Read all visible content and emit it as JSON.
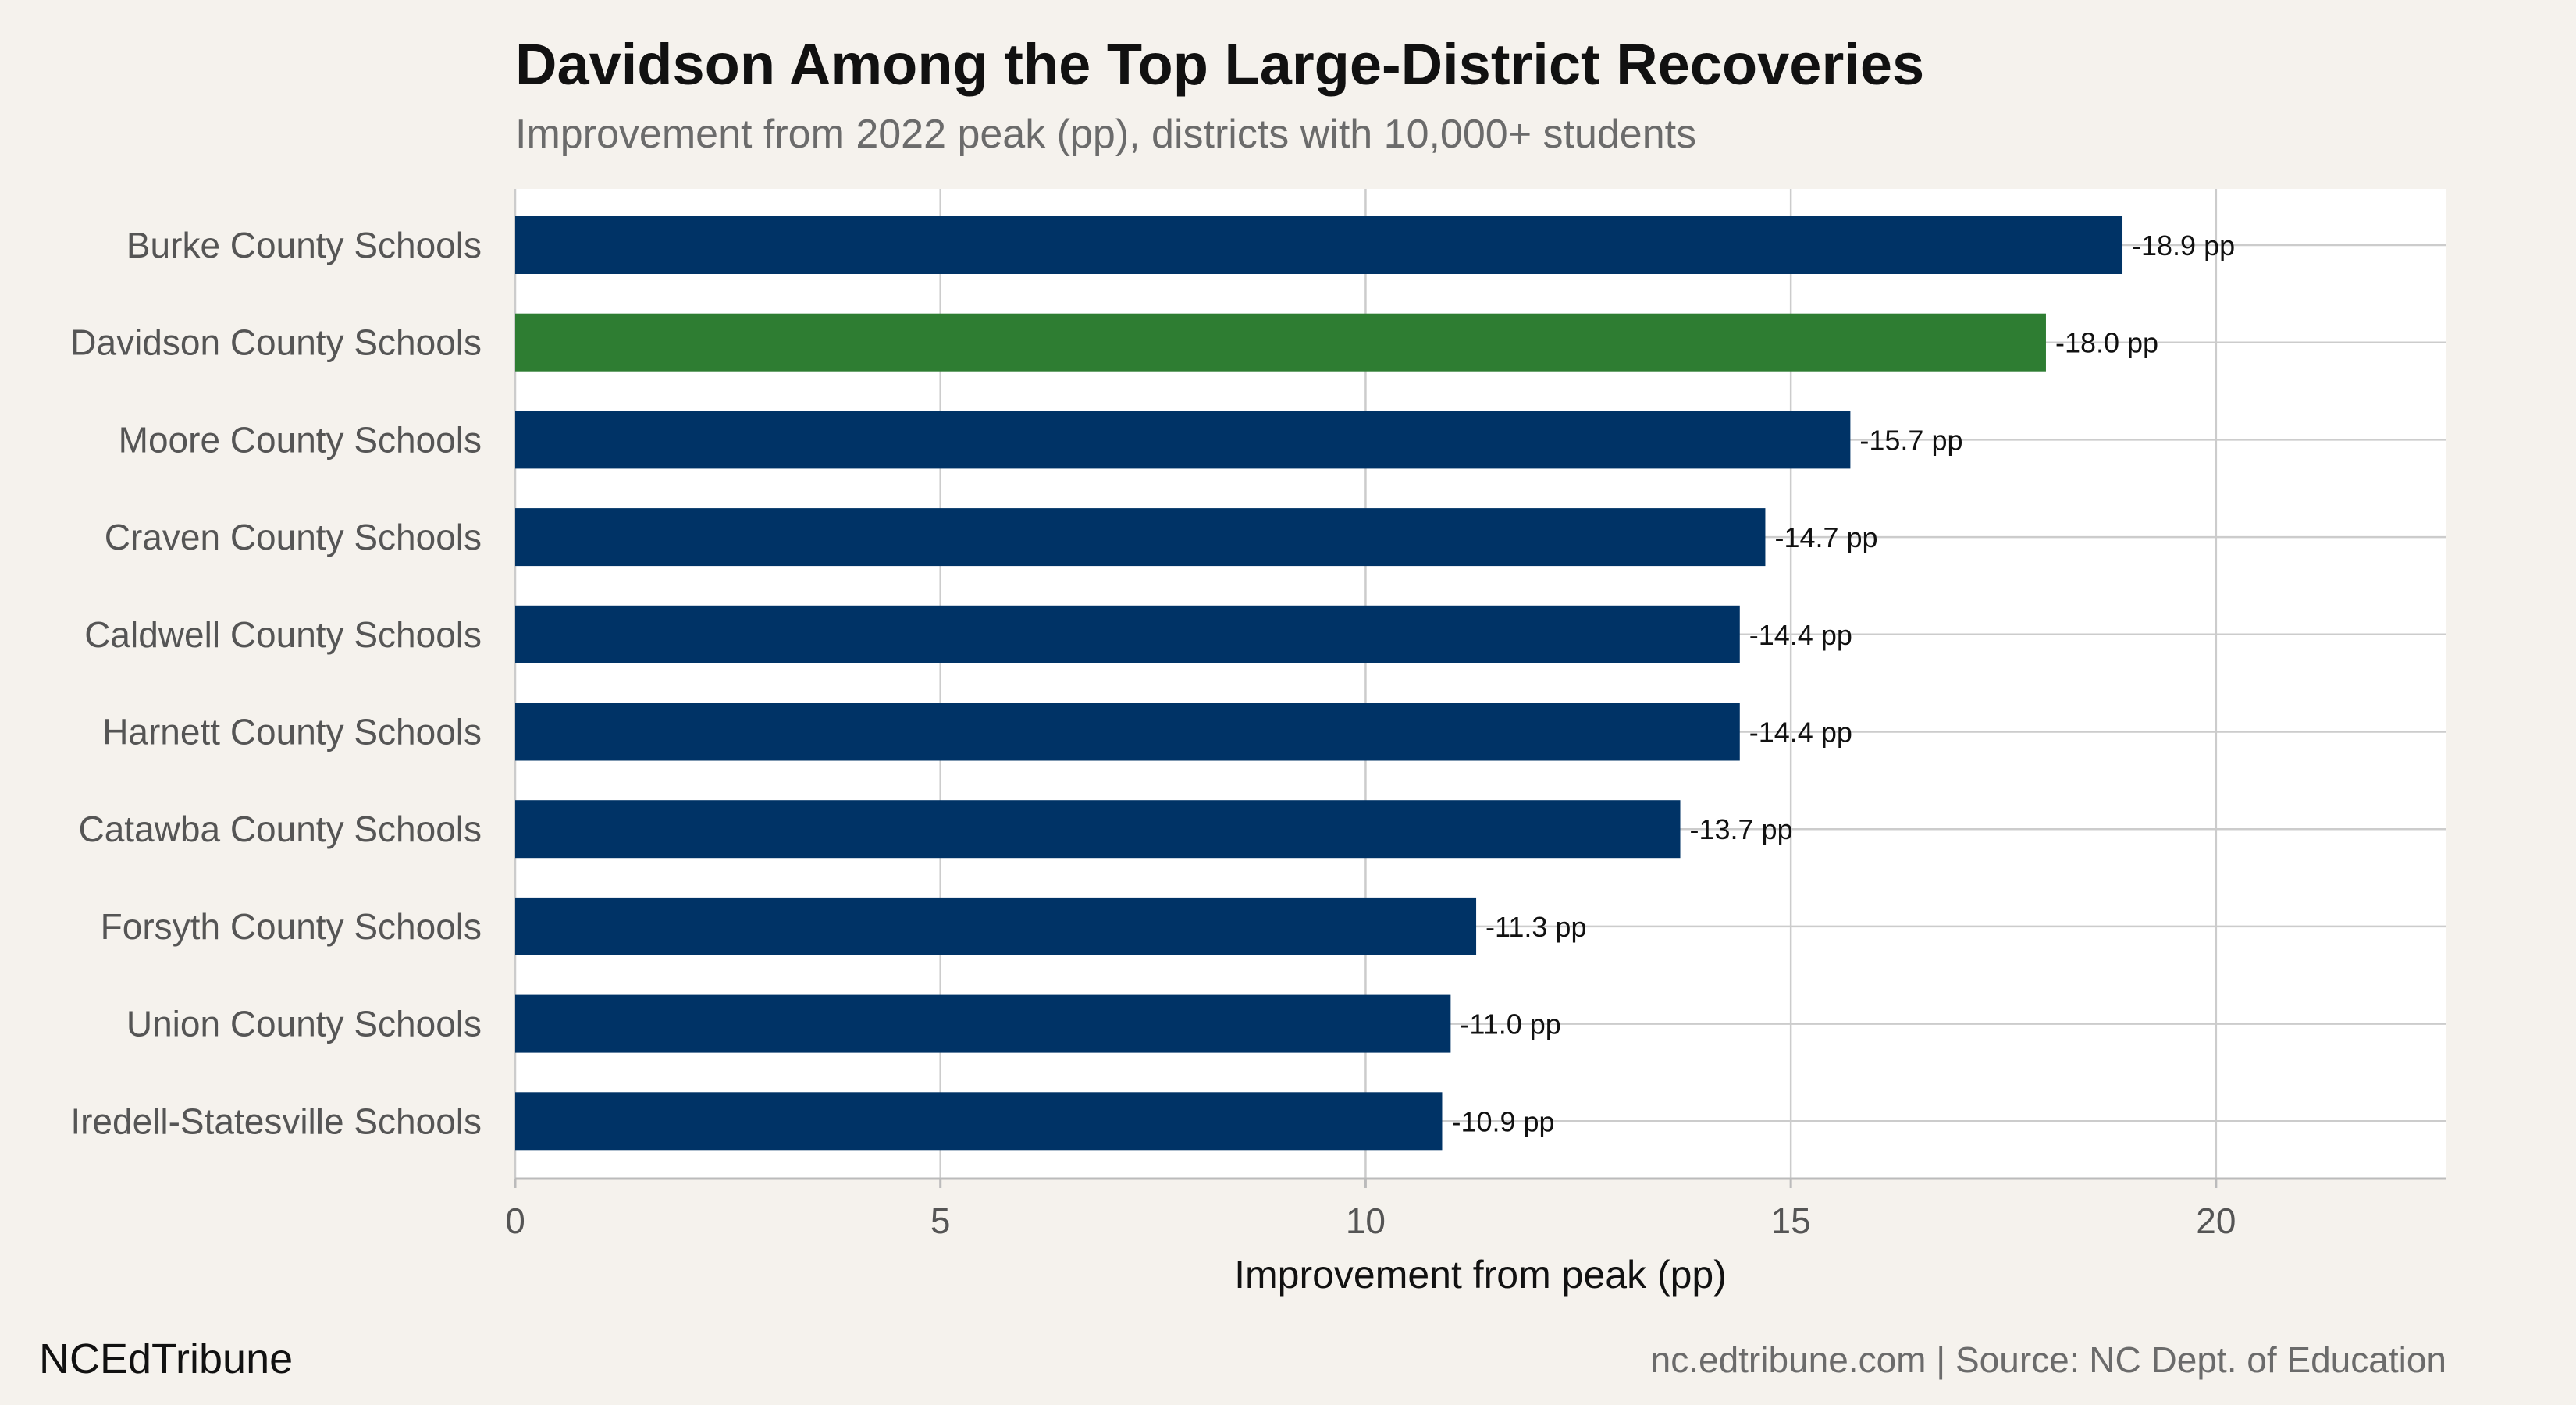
{
  "header": {
    "title": "Davidson Among the Top Large-District Recoveries",
    "subtitle": "Improvement from 2022 peak (pp), districts with 10,000+ students"
  },
  "footer": {
    "brand": "NCEdTribune",
    "source": "nc.edtribune.com | Source: NC Dept. of Education"
  },
  "colors": {
    "bar": "#003366",
    "highlight": "#2e7d32",
    "panel": "#ffffff",
    "grid": "#cccccc",
    "page_background": "#f5f2ed"
  },
  "chart_data": {
    "type": "bar",
    "orientation": "horizontal",
    "title": "Davidson Among the Top Large-District Recoveries",
    "subtitle": "Improvement from 2022 peak (pp), districts with 10,000+ students",
    "xlabel": "Improvement from peak (pp)",
    "ylabel": "",
    "xlim": [
      0,
      22.7
    ],
    "xticks": [
      0,
      5,
      10,
      15,
      20
    ],
    "grid": true,
    "highlight_category": "Davidson County Schools",
    "categories": [
      "Burke County Schools",
      "Davidson County Schools",
      "Moore County Schools",
      "Craven County Schools",
      "Caldwell County Schools",
      "Harnett County Schools",
      "Catawba County Schools",
      "Forsyth County Schools",
      "Union County Schools",
      "Iredell-Statesville Schools"
    ],
    "values": [
      18.9,
      18.0,
      15.7,
      14.7,
      14.4,
      14.4,
      13.7,
      11.3,
      11.0,
      10.9
    ],
    "data_labels": [
      "-18.9 pp",
      "-18.0 pp",
      "-15.7 pp",
      "-14.7 pp",
      "-14.4 pp",
      "-14.4 pp",
      "-13.7 pp",
      "-11.3 pp",
      "-11.0 pp",
      "-10.9 pp"
    ]
  }
}
